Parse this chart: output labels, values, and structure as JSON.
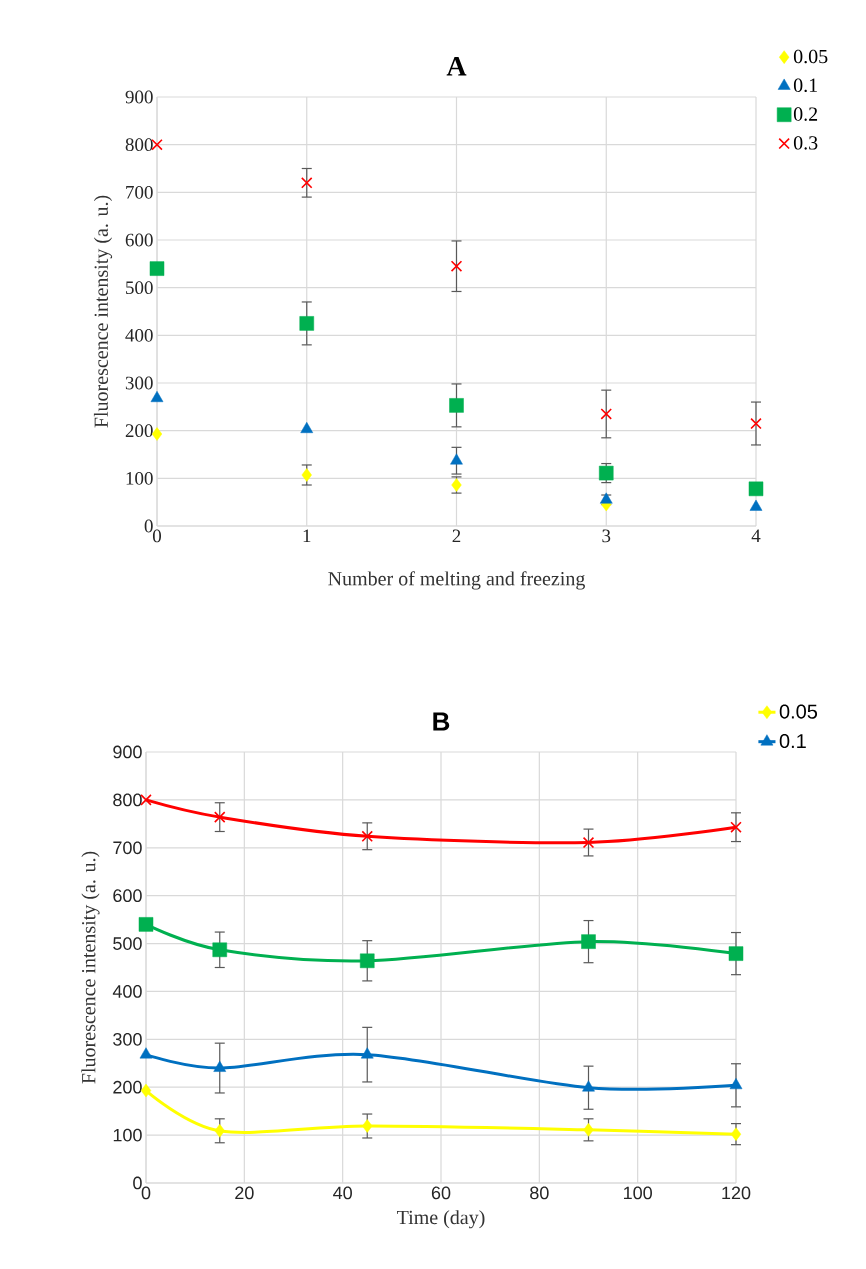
{
  "chart_data": [
    {
      "type": "scatter",
      "title": "A",
      "xlabel": "Number of melting and freezing",
      "ylabel": "Fluorescence intensity (a. u.)",
      "x": [
        0,
        1,
        2,
        3,
        4
      ],
      "xlim": [
        0,
        4
      ],
      "xticks": [
        0,
        1,
        2,
        3,
        4
      ],
      "ylim": [
        0,
        900
      ],
      "yticks": [
        0,
        100,
        200,
        300,
        400,
        500,
        600,
        700,
        800,
        900
      ],
      "grid": true,
      "legend": "top right",
      "series": [
        {
          "name": "0.05",
          "color": "#ffff00",
          "marker": "diamond",
          "values": [
            193,
            107,
            86,
            45,
            null
          ],
          "errors": [
            null,
            21,
            17,
            null,
            null
          ]
        },
        {
          "name": "0.1",
          "color": "#0070c0",
          "marker": "triangle",
          "values": [
            268,
            203,
            137,
            55,
            40
          ],
          "errors": [
            null,
            null,
            28,
            10,
            null
          ]
        },
        {
          "name": "0.2",
          "color": "#00b050",
          "marker": "square",
          "values": [
            540,
            425,
            253,
            111,
            78
          ],
          "errors": [
            null,
            45,
            45,
            20,
            null
          ]
        },
        {
          "name": "0.3",
          "color": "#ff0000",
          "marker": "cross",
          "values": [
            800,
            720,
            545,
            235,
            215
          ],
          "errors": [
            null,
            30,
            53,
            50,
            45
          ]
        }
      ]
    },
    {
      "type": "line",
      "title": "B",
      "xlabel": "Time (day)",
      "ylabel": "Fluorescence intensity (a. u.)",
      "x": [
        0,
        15,
        45,
        90,
        120
      ],
      "xlim": [
        0,
        120
      ],
      "xticks": [
        0,
        20,
        40,
        60,
        80,
        100,
        120
      ],
      "ylim": [
        0,
        900
      ],
      "yticks": [
        0,
        100,
        200,
        300,
        400,
        500,
        600,
        700,
        800,
        900
      ],
      "grid": true,
      "legend": "top right",
      "series": [
        {
          "name": "0.05",
          "color": "#ffff00",
          "marker": "diamond",
          "values": [
            193,
            109,
            119,
            111,
            102
          ],
          "errors": [
            null,
            25,
            25,
            23,
            22
          ]
        },
        {
          "name": "0.1",
          "color": "#0070c0",
          "marker": "triangle",
          "values": [
            268,
            240,
            268,
            199,
            204
          ],
          "errors": [
            null,
            52,
            57,
            45,
            45
          ]
        },
        {
          "color": "#00b050",
          "marker": "square",
          "values": [
            540,
            487,
            464,
            504,
            479
          ],
          "errors": [
            null,
            37,
            42,
            44,
            44
          ]
        },
        {
          "color": "#ff0000",
          "marker": "cross",
          "values": [
            800,
            764,
            724,
            711,
            743
          ],
          "errors": [
            null,
            30,
            28,
            28,
            30
          ]
        }
      ]
    }
  ]
}
